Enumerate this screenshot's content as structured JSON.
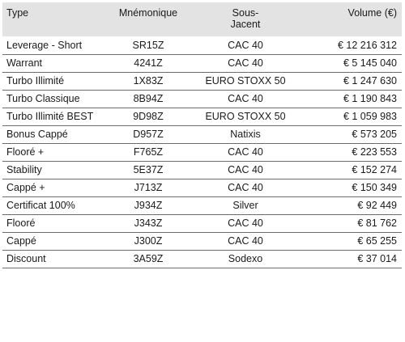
{
  "table": {
    "headers": {
      "type": "Type",
      "mnemonique": "Mnémonique",
      "sous_jacent_line1": "Sous-",
      "sous_jacent_line2": "Jacent",
      "volume": "Volume (€)"
    },
    "rows": [
      {
        "type": "Leverage - Short",
        "mnemonique": "SR15Z",
        "sous_jacent": "CAC 40",
        "volume": "€ 12 216 312"
      },
      {
        "type": "Warrant",
        "mnemonique": "4241Z",
        "sous_jacent": "CAC 40",
        "volume": "€ 5 145 040"
      },
      {
        "type": "Turbo Illimité",
        "mnemonique": "1X83Z",
        "sous_jacent": "EURO STOXX 50",
        "volume": "€ 1 247 630"
      },
      {
        "type": "Turbo Classique",
        "mnemonique": "8B94Z",
        "sous_jacent": "CAC 40",
        "volume": "€ 1 190 843"
      },
      {
        "type": "Turbo Illimité BEST",
        "mnemonique": "9D98Z",
        "sous_jacent": "EURO STOXX 50",
        "volume": "€ 1 059 983"
      },
      {
        "type": "Bonus Cappé",
        "mnemonique": "D957Z",
        "sous_jacent": "Natixis",
        "volume": "€ 573 205"
      },
      {
        "type": "Flooré +",
        "mnemonique": "F765Z",
        "sous_jacent": "CAC 40",
        "volume": "€ 223 553"
      },
      {
        "type": "Stability",
        "mnemonique": "5E37Z",
        "sous_jacent": "CAC 40",
        "volume": "€ 152 274"
      },
      {
        "type": "Cappé +",
        "mnemonique": "J713Z",
        "sous_jacent": "CAC 40",
        "volume": "€ 150 349"
      },
      {
        "type": "Certificat 100%",
        "mnemonique": "J934Z",
        "sous_jacent": "Silver",
        "volume": "€ 92 449"
      },
      {
        "type": "Flooré",
        "mnemonique": "J343Z",
        "sous_jacent": "CAC 40",
        "volume": "€ 81 762"
      },
      {
        "type": "Cappé",
        "mnemonique": "J300Z",
        "sous_jacent": "CAC 40",
        "volume": "€ 65 255"
      },
      {
        "type": "Discount",
        "mnemonique": "3A59Z",
        "sous_jacent": "Sodexo",
        "volume": "€ 37 014"
      }
    ]
  },
  "colors": {
    "header_background": "#e3e3e3",
    "row_divider": "#6b6b6b",
    "text": "#1a1a1a"
  }
}
